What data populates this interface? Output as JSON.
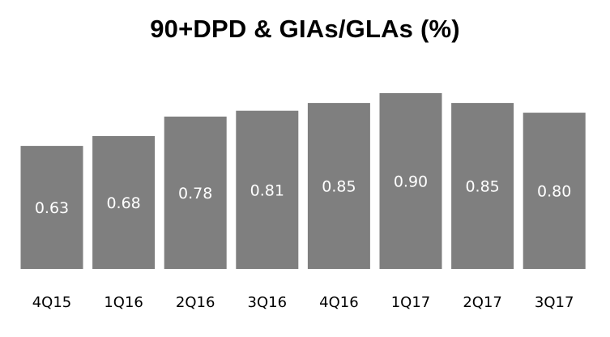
{
  "chart_data": {
    "type": "bar",
    "title": "90+DPD & GIAs/GLAs (%)",
    "categories": [
      "4Q15",
      "1Q16",
      "2Q16",
      "3Q16",
      "4Q16",
      "1Q17",
      "2Q17",
      "3Q17"
    ],
    "values": [
      0.63,
      0.68,
      0.78,
      0.81,
      0.85,
      0.9,
      0.85,
      0.8
    ],
    "value_labels": [
      "0.63",
      "0.68",
      "0.78",
      "0.81",
      "0.85",
      "0.90",
      "0.85",
      "0.80"
    ],
    "xlabel": "",
    "ylabel": "",
    "ylim": [
      0,
      0.9
    ],
    "grid": false,
    "bar_color": "#7f7f7f",
    "label_color": "#ffffff"
  }
}
